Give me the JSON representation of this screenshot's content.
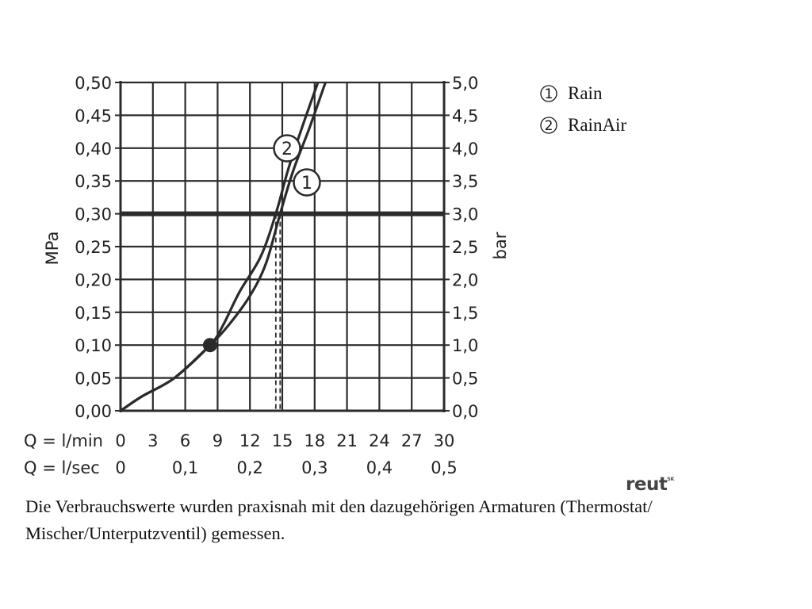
{
  "chart_data": {
    "type": "line",
    "xlim": [
      0,
      30
    ],
    "ylim": [
      0,
      0.5
    ],
    "y_ticks": [
      "0,00",
      "0,05",
      "0,10",
      "0,15",
      "0,20",
      "0,25",
      "0,30",
      "0,35",
      "0,40",
      "0,45",
      "0,50"
    ],
    "y2_ticks": [
      "0,0",
      "0,5",
      "1,0",
      "1,5",
      "2,0",
      "2,5",
      "3,0",
      "3,5",
      "4,0",
      "4,5",
      "5,0"
    ],
    "ylabel": "MPa",
    "y2label": "bar",
    "x_row1_label": "Q = l/min",
    "x_row1_ticks": [
      "0",
      "3",
      "6",
      "9",
      "12",
      "15",
      "18",
      "21",
      "24",
      "27",
      "30"
    ],
    "x_row2_label": "Q = l/sec",
    "x_row2_ticks": [
      "0",
      "0,1",
      "0,2",
      "0,3",
      "0,4",
      "0,5"
    ],
    "reference_pressure": 0.3,
    "grid": true,
    "series": [
      {
        "name": "Rain",
        "marker": "1",
        "points": [
          [
            0,
            0
          ],
          [
            2,
            0.022
          ],
          [
            5,
            0.05
          ],
          [
            8.3,
            0.1
          ],
          [
            10,
            0.13
          ],
          [
            12,
            0.175
          ],
          [
            13.5,
            0.225
          ],
          [
            14.8,
            0.3
          ],
          [
            16,
            0.365
          ],
          [
            17.5,
            0.43
          ],
          [
            19,
            0.5
          ]
        ]
      },
      {
        "name": "RainAir",
        "marker": "2",
        "points": [
          [
            0,
            0
          ],
          [
            2,
            0.022
          ],
          [
            5,
            0.05
          ],
          [
            8.3,
            0.1
          ],
          [
            9.5,
            0.13
          ],
          [
            11,
            0.18
          ],
          [
            13,
            0.235
          ],
          [
            14.4,
            0.3
          ],
          [
            15.5,
            0.365
          ],
          [
            16.8,
            0.43
          ],
          [
            18.3,
            0.5
          ]
        ]
      }
    ],
    "common_point": [
      8.3,
      0.1
    ],
    "dashed_flow_marks": [
      14.4,
      14.8
    ],
    "line_color": "#2b2b2b"
  },
  "legend": [
    {
      "num": "1",
      "label": "Rain"
    },
    {
      "num": "2",
      "label": "RainAir"
    }
  ],
  "brand": {
    "name": "reut",
    "suffix": "SK"
  },
  "footnote": "Die Verbrauchswerte wurden praxisnah mit den dazugehörigen Armaturen (Thermostat/ Mischer/Unterputzventil) gemessen."
}
